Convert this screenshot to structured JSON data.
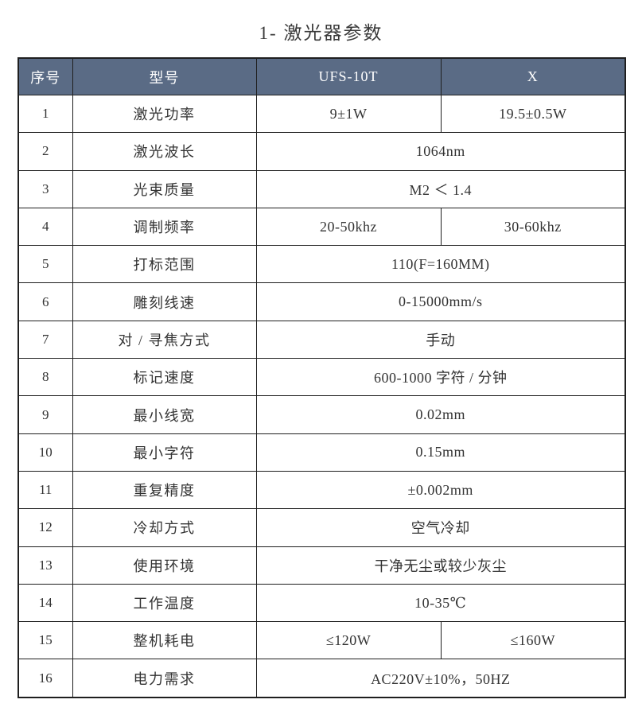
{
  "title": "1- 激光器参数",
  "colors": {
    "header_bg": "#5a6b85",
    "header_text": "#ffffff",
    "border": "#1f1f1f",
    "body_text": "#333333",
    "page_bg": "#ffffff"
  },
  "table": {
    "headers": [
      "序号",
      "型号",
      "UFS-10T",
      "X"
    ],
    "rows": [
      {
        "no": "1",
        "param": "激光功率",
        "values": [
          "9±1W",
          "19.5±0.5W"
        ]
      },
      {
        "no": "2",
        "param": "激光波长",
        "values": [
          "1064nm"
        ]
      },
      {
        "no": "3",
        "param": "光束质量",
        "values": [
          "M2 ＜ 1.4"
        ]
      },
      {
        "no": "4",
        "param": "调制频率",
        "values": [
          "20-50khz",
          "30-60khz"
        ]
      },
      {
        "no": "5",
        "param": "打标范围",
        "values": [
          "110(F=160MM)"
        ]
      },
      {
        "no": "6",
        "param": "雕刻线速",
        "values": [
          "0-15000mm/s"
        ]
      },
      {
        "no": "7",
        "param": "对 / 寻焦方式",
        "values": [
          "手动"
        ]
      },
      {
        "no": "8",
        "param": "标记速度",
        "values": [
          "600-1000 字符 / 分钟"
        ]
      },
      {
        "no": "9",
        "param": "最小线宽",
        "values": [
          "0.02mm"
        ]
      },
      {
        "no": "10",
        "param": "最小字符",
        "values": [
          "0.15mm"
        ]
      },
      {
        "no": "11",
        "param": "重复精度",
        "values": [
          "±0.002mm"
        ]
      },
      {
        "no": "12",
        "param": "冷却方式",
        "values": [
          "空气冷却"
        ]
      },
      {
        "no": "13",
        "param": "使用环境",
        "values": [
          "干净无尘或较少灰尘"
        ]
      },
      {
        "no": "14",
        "param": "工作温度",
        "values": [
          "10-35℃"
        ]
      },
      {
        "no": "15",
        "param": "整机耗电",
        "values": [
          "≤120W",
          "≤160W"
        ]
      },
      {
        "no": "16",
        "param": "电力需求",
        "values": [
          "AC220V±10%，50HZ"
        ]
      }
    ]
  }
}
